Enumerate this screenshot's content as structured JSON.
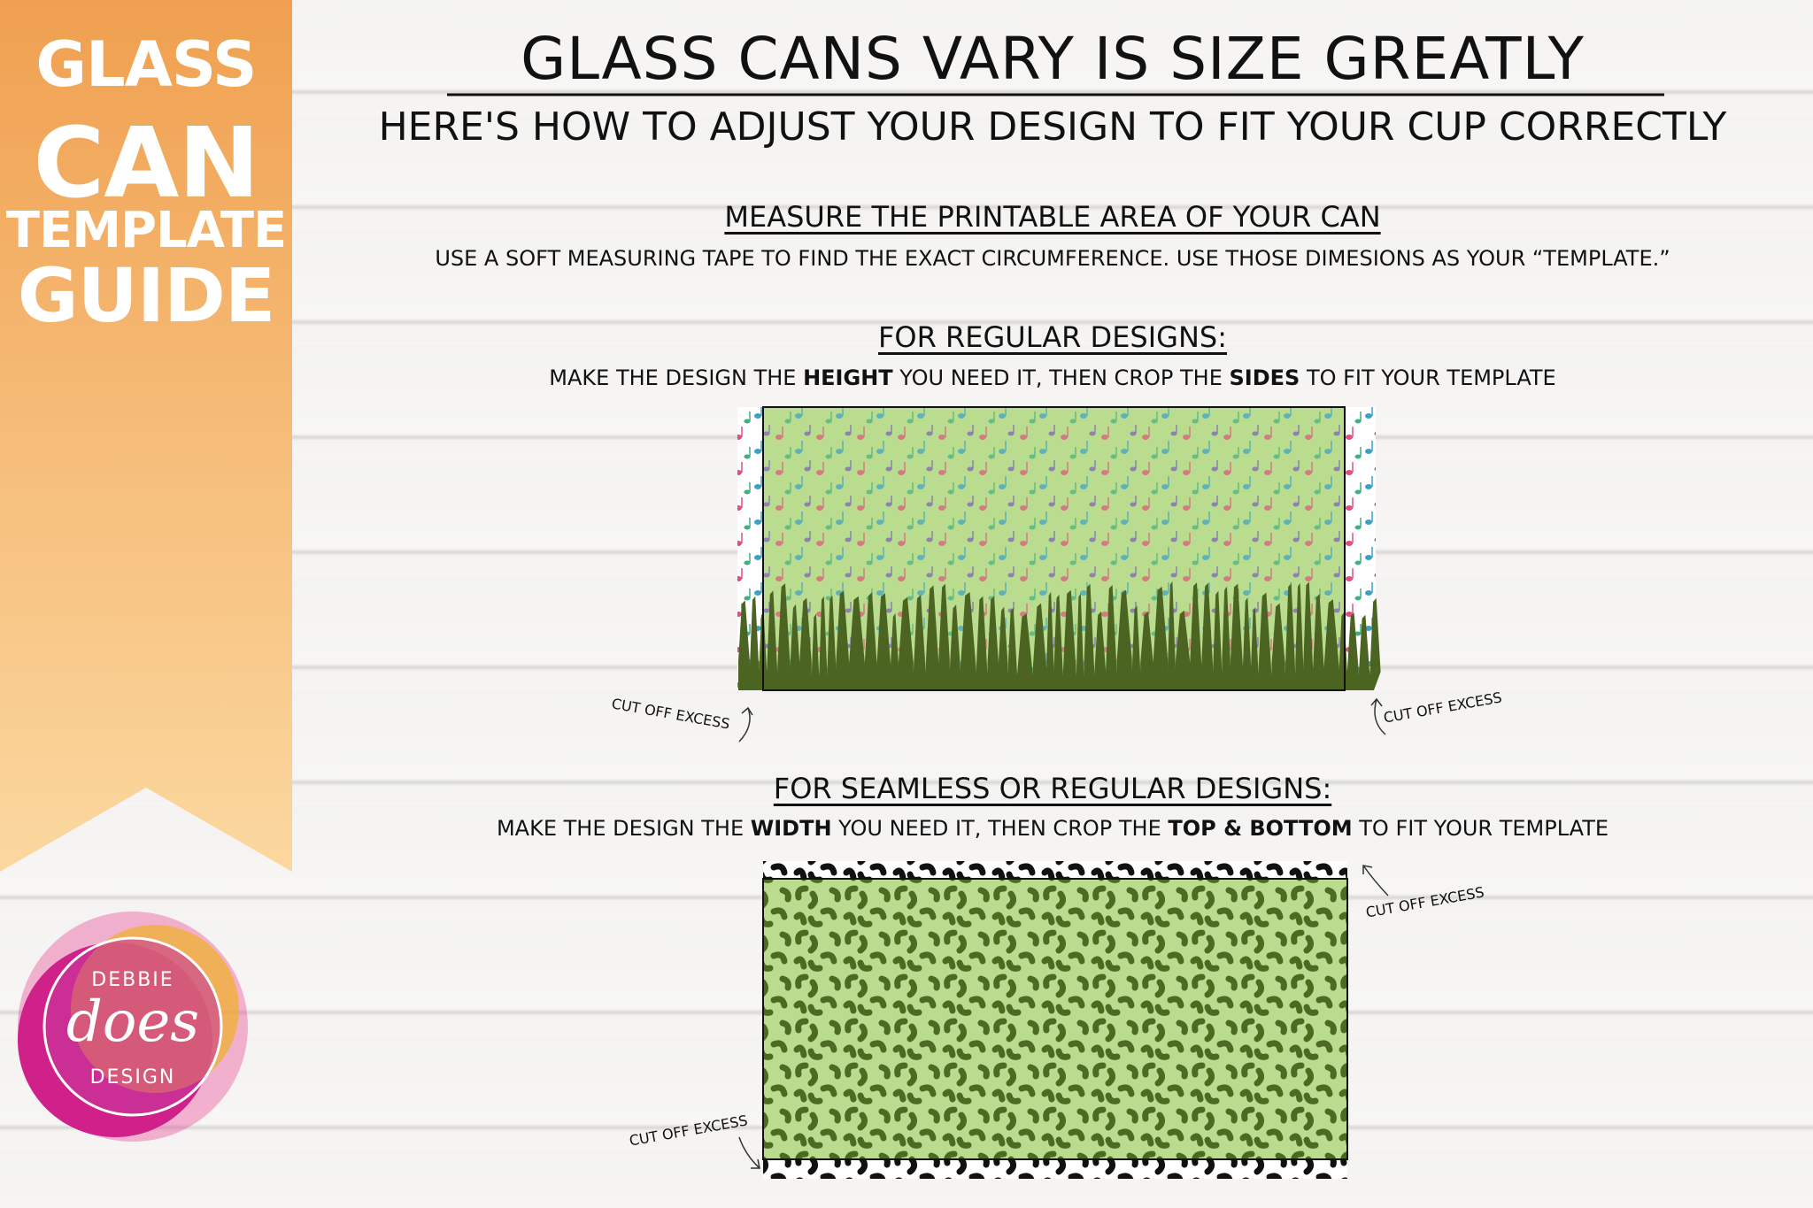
{
  "banner": {
    "lines": [
      "GLASS",
      "CAN",
      "TEMPLATE",
      "GUIDE"
    ]
  },
  "header": {
    "title": "GLASS CANS VARY IS SIZE GREATLY",
    "subtitle": "HERE'S HOW TO ADJUST YOUR DESIGN TO FIT YOUR CUP CORRECTLY"
  },
  "measure": {
    "heading": "MEASURE THE PRINTABLE AREA OF YOUR CAN",
    "text": "USE A SOFT MEASURING TAPE TO FIND THE EXACT CIRCUMFERENCE. USE THOSE DIMESIONS AS YOUR “TEMPLATE.”"
  },
  "regular": {
    "heading": "FOR REGULAR DESIGNS:",
    "text": [
      "MAKE THE DESIGN THE ",
      "HEIGHT",
      " YOU NEED IT, THEN CROP THE ",
      "SIDES",
      " TO FIT YOUR TEMPLATE"
    ],
    "annotations": [
      "CUT OFF EXCESS",
      "CUT OFF EXCESS"
    ]
  },
  "seamless": {
    "heading": "FOR SEAMLESS OR REGULAR DESIGNS:",
    "text": [
      "MAKE THE DESIGN THE ",
      "WIDTH",
      " YOU NEED IT, THEN CROP THE ",
      "TOP & BOTTOM",
      " TO FIT YOUR TEMPLATE"
    ],
    "annotations": [
      "CUT OFF EXCESS",
      "CUT OFF EXCESS"
    ]
  },
  "logo": {
    "top": "DEBBIE",
    "middle": "does",
    "bottom": "DESIGN"
  }
}
